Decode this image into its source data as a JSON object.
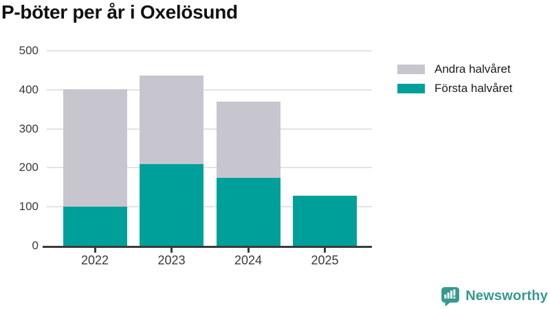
{
  "title": "P-böter per år i Oxelösund",
  "chart_data": {
    "type": "bar",
    "stacked": true,
    "title": "P-böter per år i Oxelösund",
    "categories": [
      "2022",
      "2023",
      "2024",
      "2025"
    ],
    "series": [
      {
        "name": "Första halvåret",
        "color": "#00A09A",
        "values": [
          101,
          210,
          175,
          128
        ]
      },
      {
        "name": "Andra halvåret",
        "color": "#C7C5CE",
        "values": [
          301,
          227,
          195,
          0
        ]
      }
    ],
    "legend": [
      {
        "label": "Andra halvåret",
        "color": "#C7C5CE"
      },
      {
        "label": "Första halvåret",
        "color": "#00A09A"
      }
    ],
    "xlabel": "",
    "ylabel": "",
    "ylim": [
      0,
      500
    ],
    "yticks": [
      0,
      100,
      200,
      300,
      400,
      500
    ],
    "grid": true,
    "legend_position": "top-right"
  },
  "branding": {
    "logo_text": "Newsworthy",
    "logo_icon": "newsworthy-speech-bubble-bar-chart-icon",
    "logo_color": "#35998E"
  },
  "colors": {
    "background": "#FFFFFF",
    "title_text": "#111111",
    "axis_text": "#383838",
    "gridline": "#E3E3E5",
    "axis_line": "#3A3A3C",
    "bar_first_half": "#00A09A",
    "bar_second_half": "#C7C5CE"
  }
}
